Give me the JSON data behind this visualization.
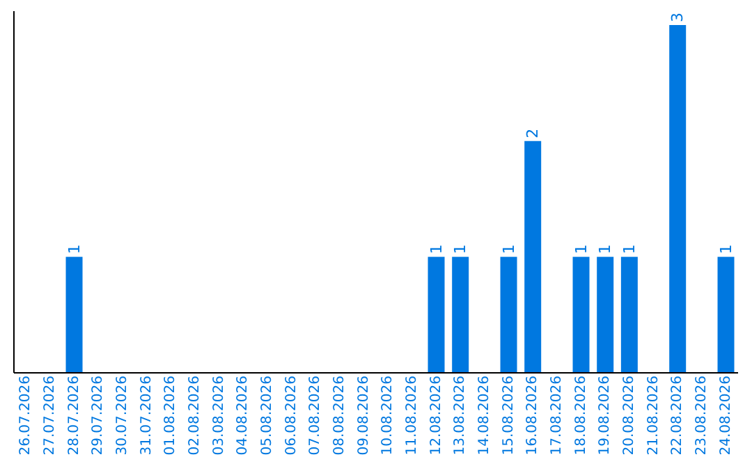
{
  "chart_data": {
    "type": "bar",
    "categories": [
      "26.07.2026",
      "27.07.2026",
      "28.07.2026",
      "29.07.2026",
      "30.07.2026",
      "31.07.2026",
      "01.08.2026",
      "02.08.2026",
      "03.08.2026",
      "04.08.2026",
      "05.08.2026",
      "06.08.2026",
      "07.08.2026",
      "08.08.2026",
      "09.08.2026",
      "10.08.2026",
      "11.08.2026",
      "12.08.2026",
      "13.08.2026",
      "14.08.2026",
      "15.08.2026",
      "16.08.2026",
      "17.08.2026",
      "18.08.2026",
      "19.08.2026",
      "20.08.2026",
      "21.08.2026",
      "22.08.2026",
      "23.08.2026",
      "24.08.2026"
    ],
    "values": [
      0,
      0,
      1,
      0,
      0,
      0,
      0,
      0,
      0,
      0,
      0,
      0,
      0,
      0,
      0,
      0,
      0,
      1,
      1,
      0,
      1,
      2,
      0,
      1,
      1,
      1,
      0,
      3,
      0,
      1
    ],
    "value_labels": [
      null,
      null,
      "1",
      null,
      null,
      null,
      null,
      null,
      null,
      null,
      null,
      null,
      null,
      null,
      null,
      null,
      null,
      "1",
      "1",
      null,
      "1",
      "2",
      null,
      "1",
      "1",
      "1",
      null,
      "3",
      null,
      "1"
    ],
    "color": "#0078e0",
    "tick_labels": "x"
  }
}
